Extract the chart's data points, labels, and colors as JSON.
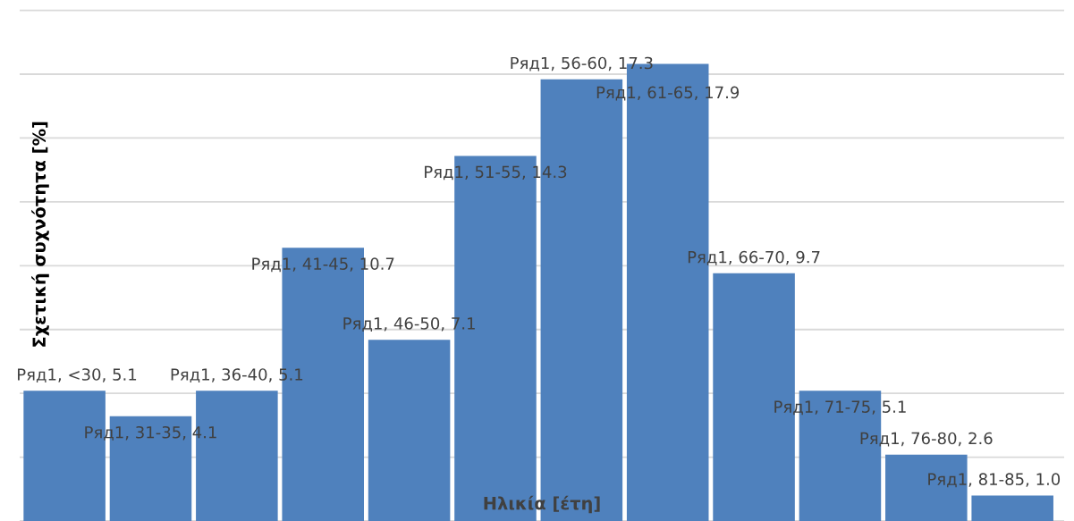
{
  "chart_data": {
    "type": "bar",
    "xlabel": "Ηλικία [έτη]",
    "ylabel": "Σχετική συχνότητα [%]",
    "categories": [
      null,
      null,
      null,
      null,
      null,
      null,
      null,
      null,
      null,
      null,
      null,
      null
    ],
    "series": [
      {
        "color": "#4f81bd",
        "values": [
          5.1,
          4.1,
          5.1,
          10.7,
          7.1,
          14.3,
          17.3,
          17.9,
          9.7,
          5.1,
          2.6,
          1.0
        ],
        "value_labels": [
          "Ряд1, <30, 5.1",
          "Ряд1, 31-35, 4.1",
          "Ряд1, 36-40, 5.1",
          "Ряд1, 41-45, 10.7",
          "Ряд1, 46-50, 7.1",
          "Ряд1, 51-55, 14.3",
          "Ряд1, 56-60, 17.3",
          "Ряд1, 61-65, 17.9",
          "Ряд1, 66-70, 9.7",
          "Ряд1, 71-75, 5.1",
          "Ряд1, 76-80, 2.6",
          "Ряд1, 81-85, 1.0"
        ]
      }
    ],
    "tick_labels": false,
    "grid": "y"
  }
}
